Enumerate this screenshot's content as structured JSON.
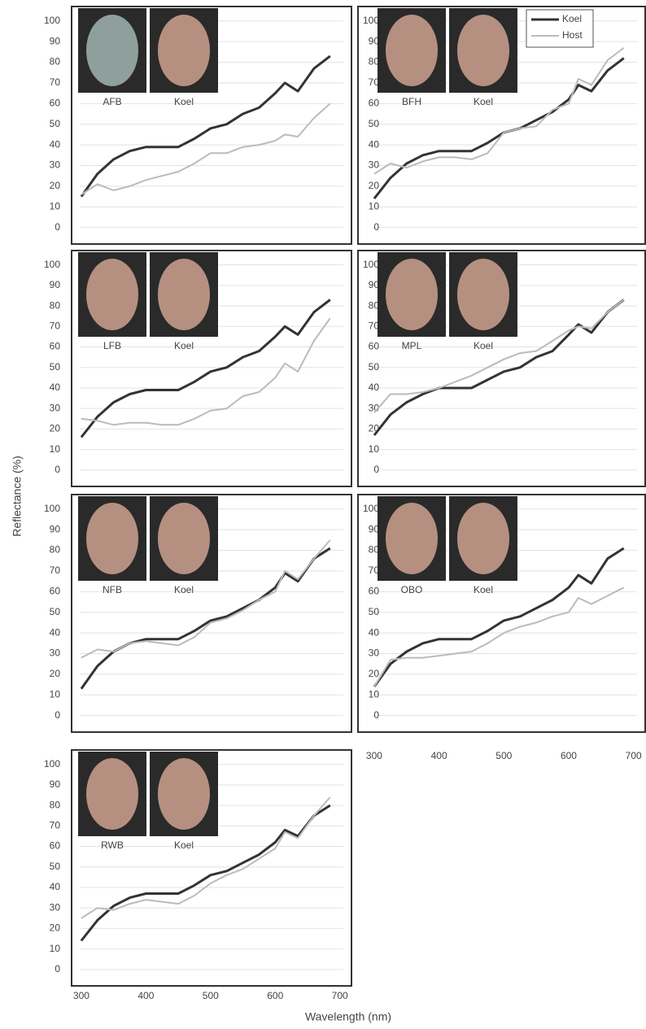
{
  "axis_titles": {
    "y": "Reflectance (%)",
    "x": "Wavelength (nm)"
  },
  "chart_data": [
    {
      "type": "line",
      "annotations": [
        "AFB",
        "Koel"
      ],
      "x": [
        300,
        325,
        350,
        375,
        400,
        425,
        450,
        475,
        500,
        525,
        550,
        575,
        600,
        615,
        635,
        660,
        685
      ],
      "xlim": [
        285,
        718
      ],
      "ylim": [
        -8,
        107
      ],
      "yticks": [
        0,
        10,
        20,
        30,
        40,
        50,
        60,
        70,
        80,
        90,
        100
      ],
      "grid": true,
      "series": [
        {
          "color": "#333333",
          "values": [
            15,
            26,
            33,
            37,
            39,
            39,
            39,
            43,
            48,
            50,
            55,
            58,
            65,
            70,
            66,
            77,
            83
          ]
        },
        {
          "color": "#bbbbbb",
          "values": [
            16,
            21,
            18,
            20,
            23,
            25,
            27,
            31,
            36,
            36,
            39,
            40,
            42,
            45,
            44,
            53,
            60
          ]
        }
      ]
    },
    {
      "type": "line",
      "annotations": [
        "BFH",
        "Koel"
      ],
      "legend": "upper right",
      "x": [
        300,
        325,
        350,
        375,
        400,
        425,
        450,
        475,
        500,
        525,
        550,
        575,
        600,
        615,
        635,
        660,
        685
      ],
      "xlim": [
        285,
        718
      ],
      "ylim": [
        -8,
        107
      ],
      "yticks": [
        0,
        10,
        20,
        30,
        40,
        50,
        60,
        70,
        80,
        90,
        100
      ],
      "grid": true,
      "series": [
        {
          "name": "Koel",
          "color": "#333333",
          "values": [
            14,
            24,
            31,
            35,
            37,
            37,
            37,
            41,
            46,
            48,
            52,
            56,
            62,
            69,
            66,
            76,
            82
          ]
        },
        {
          "name": "Host",
          "color": "#bbbbbb",
          "values": [
            26,
            31,
            29,
            32,
            34,
            34,
            33,
            36,
            46,
            48,
            49,
            57,
            60,
            72,
            69,
            81,
            87
          ]
        }
      ]
    },
    {
      "type": "line",
      "annotations": [
        "LFB",
        "Koel"
      ],
      "x": [
        300,
        325,
        350,
        375,
        400,
        425,
        450,
        475,
        500,
        525,
        550,
        575,
        600,
        615,
        635,
        660,
        685
      ],
      "xlim": [
        285,
        718
      ],
      "ylim": [
        -8,
        107
      ],
      "yticks": [
        0,
        10,
        20,
        30,
        40,
        50,
        60,
        70,
        80,
        90,
        100
      ],
      "grid": true,
      "series": [
        {
          "color": "#333333",
          "values": [
            16,
            26,
            33,
            37,
            39,
            39,
            39,
            43,
            48,
            50,
            55,
            58,
            65,
            70,
            66,
            77,
            83
          ]
        },
        {
          "color": "#bbbbbb",
          "values": [
            25,
            24,
            22,
            23,
            23,
            22,
            22,
            25,
            29,
            30,
            36,
            38,
            45,
            52,
            48,
            63,
            74
          ]
        }
      ]
    },
    {
      "type": "line",
      "annotations": [
        "MPL",
        "Koel"
      ],
      "x": [
        300,
        325,
        350,
        375,
        400,
        425,
        450,
        475,
        500,
        525,
        550,
        575,
        600,
        615,
        635,
        660,
        685
      ],
      "xlim": [
        285,
        718
      ],
      "ylim": [
        -8,
        107
      ],
      "yticks": [
        0,
        10,
        20,
        30,
        40,
        50,
        60,
        70,
        80,
        90,
        100
      ],
      "grid": true,
      "series": [
        {
          "color": "#333333",
          "values": [
            17,
            27,
            33,
            37,
            40,
            40,
            40,
            44,
            48,
            50,
            55,
            58,
            66,
            71,
            67,
            77,
            83
          ]
        },
        {
          "color": "#bbbbbb",
          "values": [
            28,
            37,
            37,
            38,
            40,
            43,
            46,
            50,
            54,
            57,
            58,
            63,
            68,
            70,
            69,
            77,
            83
          ]
        }
      ]
    },
    {
      "type": "line",
      "annotations": [
        "NFB",
        "Koel"
      ],
      "x": [
        300,
        325,
        350,
        375,
        400,
        425,
        450,
        475,
        500,
        525,
        550,
        575,
        600,
        615,
        635,
        660,
        685
      ],
      "xlim": [
        285,
        718
      ],
      "ylim": [
        -8,
        107
      ],
      "yticks": [
        0,
        10,
        20,
        30,
        40,
        50,
        60,
        70,
        80,
        90,
        100
      ],
      "grid": true,
      "series": [
        {
          "color": "#333333",
          "values": [
            13,
            24,
            31,
            35,
            37,
            37,
            37,
            41,
            46,
            48,
            52,
            56,
            62,
            69,
            65,
            76,
            81
          ]
        },
        {
          "color": "#bbbbbb",
          "values": [
            28,
            32,
            31,
            35,
            36,
            35,
            34,
            38,
            45,
            47,
            51,
            56,
            60,
            70,
            66,
            76,
            85
          ]
        }
      ]
    },
    {
      "type": "line",
      "annotations": [
        "OBO",
        "Koel"
      ],
      "x": [
        300,
        325,
        350,
        375,
        400,
        425,
        450,
        475,
        500,
        525,
        550,
        575,
        600,
        615,
        635,
        660,
        685
      ],
      "xlim": [
        285,
        718
      ],
      "ylim": [
        -8,
        107
      ],
      "yticks": [
        0,
        10,
        20,
        30,
        40,
        50,
        60,
        70,
        80,
        90,
        100
      ],
      "xticks": [
        300,
        400,
        500,
        600,
        700
      ],
      "grid": true,
      "series": [
        {
          "color": "#333333",
          "values": [
            14,
            25,
            31,
            35,
            37,
            37,
            37,
            41,
            46,
            48,
            52,
            56,
            62,
            68,
            64,
            76,
            81
          ]
        },
        {
          "color": "#bbbbbb",
          "values": [
            14,
            27,
            28,
            28,
            29,
            30,
            31,
            35,
            40,
            43,
            45,
            48,
            50,
            57,
            54,
            58,
            62
          ]
        }
      ]
    },
    {
      "type": "line",
      "annotations": [
        "RWB",
        "Koel"
      ],
      "x": [
        300,
        325,
        350,
        375,
        400,
        425,
        450,
        475,
        500,
        525,
        550,
        575,
        600,
        615,
        635,
        660,
        685
      ],
      "xlim": [
        285,
        718
      ],
      "ylim": [
        -8,
        107
      ],
      "yticks": [
        0,
        10,
        20,
        30,
        40,
        50,
        60,
        70,
        80,
        90,
        100
      ],
      "xticks": [
        300,
        400,
        500,
        600,
        700
      ],
      "grid": true,
      "series": [
        {
          "color": "#333333",
          "values": [
            14,
            24,
            31,
            35,
            37,
            37,
            37,
            41,
            46,
            48,
            52,
            56,
            62,
            68,
            65,
            75,
            80
          ]
        },
        {
          "color": "#bbbbbb",
          "values": [
            25,
            30,
            29,
            32,
            34,
            33,
            32,
            36,
            42,
            46,
            49,
            54,
            59,
            67,
            64,
            75,
            84
          ]
        }
      ]
    }
  ]
}
